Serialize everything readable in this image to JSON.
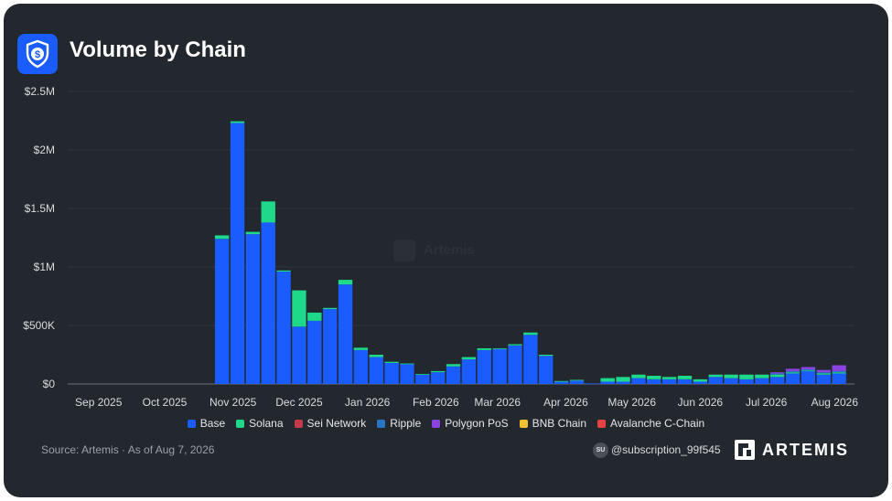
{
  "header": {
    "title": "Volume by Chain",
    "logo_icon": "shield-dollar-icon"
  },
  "footer": {
    "source": "Source: Artemis · As of Aug 7, 2026",
    "user_badge": "SU",
    "subscription": "@subscription_99f545",
    "brand": "ARTEMIS"
  },
  "watermark": {
    "text": "Artemis"
  },
  "colors": {
    "background": "#23272e",
    "Base": "#1a5cff",
    "Solana": "#1fd98a",
    "Sei Network": "#c23a4c",
    "Ripple": "#2a74c4",
    "Polygon PoS": "#8a43e0",
    "BNB Chain": "#f3c233",
    "Avalanche C-Chain": "#e84142"
  },
  "chart_data": {
    "type": "bar",
    "stacked": true,
    "title": "Volume by Chain",
    "ylim": [
      0,
      2500000
    ],
    "yticks": [
      0,
      500000,
      1000000,
      1500000,
      2000000,
      2500000
    ],
    "ytick_labels": [
      "$0",
      "$500K",
      "$1M",
      "$1.5M",
      "$2M",
      "$2.5M"
    ],
    "grid": true,
    "legend_position": "bottom",
    "x_range": [
      "2025-08-18",
      "2026-08-10"
    ],
    "xticks": [
      {
        "label": "Sep 2025",
        "date": "2025-09-01"
      },
      {
        "label": "Oct 2025",
        "date": "2025-10-01"
      },
      {
        "label": "Nov 2025",
        "date": "2025-11-01"
      },
      {
        "label": "Dec 2025",
        "date": "2025-12-01"
      },
      {
        "label": "Jan 2026",
        "date": "2026-01-01"
      },
      {
        "label": "Feb 2026",
        "date": "2026-02-01"
      },
      {
        "label": "Mar 2026",
        "date": "2026-03-01"
      },
      {
        "label": "Apr 2026",
        "date": "2026-04-01"
      },
      {
        "label": "May 2026",
        "date": "2026-05-01"
      },
      {
        "label": "Jun 2026",
        "date": "2026-06-01"
      },
      {
        "label": "Jul 2026",
        "date": "2026-07-01"
      },
      {
        "label": "Aug 2026",
        "date": "2026-08-01"
      }
    ],
    "categories": [
      "2025-10-27",
      "2025-11-03",
      "2025-11-10",
      "2025-11-17",
      "2025-11-24",
      "2025-12-01",
      "2025-12-08",
      "2025-12-15",
      "2025-12-22",
      "2025-12-29",
      "2026-01-05",
      "2026-01-12",
      "2026-01-19",
      "2026-01-26",
      "2026-02-02",
      "2026-02-09",
      "2026-02-16",
      "2026-02-23",
      "2026-03-02",
      "2026-03-09",
      "2026-03-16",
      "2026-03-23",
      "2026-03-30",
      "2026-04-06",
      "2026-04-13",
      "2026-04-20",
      "2026-04-27",
      "2026-05-04",
      "2026-05-11",
      "2026-05-18",
      "2026-05-25",
      "2026-06-01",
      "2026-06-08",
      "2026-06-15",
      "2026-06-22",
      "2026-06-29",
      "2026-07-06",
      "2026-07-13",
      "2026-07-20",
      "2026-07-27",
      "2026-08-03"
    ],
    "series": [
      {
        "name": "Base",
        "values": [
          1240000,
          2230000,
          1280000,
          1380000,
          960000,
          490000,
          540000,
          640000,
          850000,
          290000,
          230000,
          180000,
          170000,
          80000,
          100000,
          150000,
          210000,
          290000,
          300000,
          330000,
          420000,
          240000,
          20000,
          30000,
          5000,
          20000,
          20000,
          50000,
          40000,
          40000,
          40000,
          20000,
          60000,
          50000,
          40000,
          50000,
          60000,
          90000,
          110000,
          80000,
          90000
        ]
      },
      {
        "name": "Solana",
        "values": [
          30000,
          15000,
          20000,
          180000,
          10000,
          310000,
          70000,
          10000,
          40000,
          20000,
          20000,
          10000,
          5000,
          5000,
          10000,
          20000,
          20000,
          15000,
          5000,
          10000,
          20000,
          10000,
          5000,
          5000,
          0,
          30000,
          40000,
          30000,
          30000,
          20000,
          30000,
          20000,
          20000,
          30000,
          40000,
          30000,
          20000,
          10000,
          5000,
          10000,
          10000
        ]
      },
      {
        "name": "Sei Network",
        "values": [
          0,
          0,
          0,
          0,
          0,
          0,
          0,
          0,
          0,
          0,
          0,
          0,
          0,
          0,
          0,
          0,
          0,
          0,
          0,
          0,
          0,
          0,
          0,
          0,
          0,
          0,
          0,
          0,
          0,
          0,
          0,
          0,
          0,
          0,
          0,
          0,
          0,
          0,
          0,
          0,
          0
        ]
      },
      {
        "name": "Ripple",
        "values": [
          0,
          0,
          0,
          0,
          0,
          0,
          0,
          0,
          0,
          0,
          0,
          0,
          0,
          0,
          0,
          0,
          0,
          0,
          0,
          0,
          0,
          0,
          0,
          0,
          0,
          0,
          0,
          0,
          0,
          0,
          0,
          0,
          0,
          0,
          0,
          0,
          10000,
          10000,
          10000,
          10000,
          10000
        ]
      },
      {
        "name": "Polygon PoS",
        "values": [
          0,
          0,
          0,
          0,
          0,
          0,
          0,
          0,
          0,
          0,
          0,
          0,
          0,
          0,
          0,
          0,
          0,
          0,
          0,
          0,
          0,
          0,
          0,
          0,
          0,
          0,
          0,
          0,
          0,
          0,
          0,
          0,
          0,
          0,
          0,
          0,
          10000,
          20000,
          20000,
          20000,
          50000
        ]
      },
      {
        "name": "BNB Chain",
        "values": [
          0,
          0,
          0,
          0,
          0,
          0,
          0,
          0,
          0,
          0,
          0,
          0,
          0,
          0,
          0,
          0,
          0,
          0,
          0,
          0,
          0,
          0,
          0,
          0,
          0,
          0,
          0,
          0,
          0,
          0,
          0,
          0,
          0,
          0,
          0,
          0,
          0,
          0,
          0,
          0,
          0
        ]
      },
      {
        "name": "Avalanche C-Chain",
        "values": [
          0,
          0,
          0,
          0,
          0,
          0,
          0,
          0,
          0,
          0,
          0,
          0,
          0,
          0,
          0,
          0,
          0,
          0,
          0,
          0,
          0,
          0,
          0,
          0,
          0,
          0,
          0,
          0,
          0,
          0,
          0,
          0,
          0,
          0,
          0,
          0,
          0,
          0,
          0,
          0,
          0
        ]
      }
    ]
  }
}
